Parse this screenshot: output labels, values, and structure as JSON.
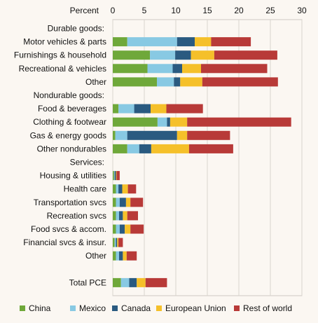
{
  "chart_data": {
    "type": "bar",
    "orientation": "horizontal",
    "stacked": true,
    "axis_label": "Percent",
    "xlim": [
      0,
      30
    ],
    "xticks": [
      0,
      5,
      10,
      15,
      20,
      25,
      30
    ],
    "grid": true,
    "legend_position": "bottom",
    "categories": [
      "Durable goods:",
      "Motor vehicles & parts",
      "Furnishings & household",
      "Recreational & vehicles",
      "Other",
      "Nondurable goods:",
      "Food & beverages",
      "Clothing & footwear",
      "Gas & energy goods",
      "Other nondurables",
      "Services:",
      "Housing & utilities",
      "Health care",
      "Transportation svcs",
      "Recreation svcs",
      "Food svcs & accom.",
      "Financial svcs & insur.",
      "Other",
      "",
      "Total PCE"
    ],
    "series": [
      {
        "name": "China",
        "color": "#6fa83a",
        "values": [
          null,
          2.3,
          5.9,
          5.5,
          7.0,
          null,
          0.9,
          7.1,
          0.4,
          2.3,
          null,
          0.2,
          0.5,
          0.5,
          0.5,
          0.5,
          0.3,
          0.5,
          null,
          1.3
        ]
      },
      {
        "name": "Mexico",
        "color": "#88c9e3",
        "values": [
          null,
          7.9,
          4.0,
          4.0,
          2.7,
          null,
          2.5,
          1.5,
          1.9,
          1.9,
          null,
          0.1,
          0.4,
          0.6,
          0.5,
          0.6,
          0.2,
          0.5,
          null,
          1.3
        ]
      },
      {
        "name": "Canada",
        "color": "#2a5a80",
        "values": [
          null,
          2.8,
          2.5,
          1.5,
          1.0,
          null,
          2.6,
          0.5,
          7.9,
          1.9,
          null,
          0.2,
          0.6,
          1.0,
          0.6,
          0.8,
          0.2,
          0.6,
          null,
          1.2
        ]
      },
      {
        "name": "European Union",
        "color": "#f5c02a",
        "values": [
          null,
          2.6,
          3.7,
          3.0,
          3.5,
          null,
          2.5,
          2.7,
          1.6,
          6.0,
          null,
          0.1,
          0.9,
          0.7,
          0.7,
          0.9,
          0.2,
          0.6,
          null,
          1.4
        ]
      },
      {
        "name": "Rest of world",
        "color": "#b83a38",
        "values": [
          null,
          6.3,
          10.0,
          10.5,
          12.0,
          null,
          5.8,
          16.5,
          6.8,
          7.0,
          null,
          0.5,
          1.3,
          2.0,
          1.7,
          2.1,
          0.7,
          1.6,
          null,
          3.4
        ]
      }
    ]
  }
}
